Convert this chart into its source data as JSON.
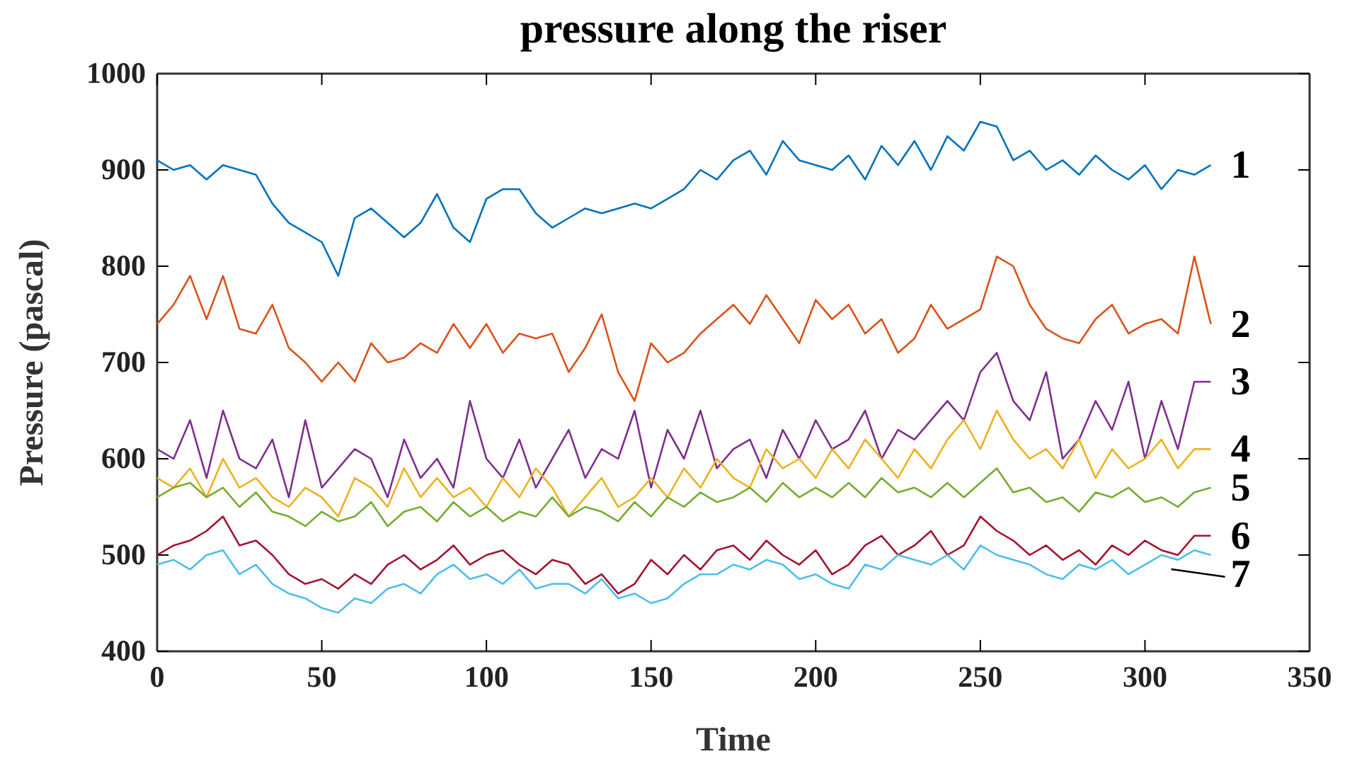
{
  "chart_data": {
    "type": "line",
    "title": "pressure along the riser",
    "xlabel": "Time",
    "ylabel": "Pressure (pascal)",
    "x": [
      0,
      5,
      10,
      15,
      20,
      25,
      30,
      35,
      40,
      45,
      50,
      55,
      60,
      65,
      70,
      75,
      80,
      85,
      90,
      95,
      100,
      105,
      110,
      115,
      120,
      125,
      130,
      135,
      140,
      145,
      150,
      155,
      160,
      165,
      170,
      175,
      180,
      185,
      190,
      195,
      200,
      205,
      210,
      215,
      220,
      225,
      230,
      235,
      240,
      245,
      250,
      255,
      260,
      265,
      270,
      275,
      280,
      285,
      290,
      295,
      300,
      305,
      310,
      315,
      320
    ],
    "xlim": [
      0,
      350
    ],
    "xticks": [
      0,
      50,
      100,
      150,
      200,
      250,
      300,
      350
    ],
    "ylim": [
      400,
      1000
    ],
    "yticks": [
      400,
      500,
      600,
      700,
      800,
      900,
      1000
    ],
    "grid": false,
    "legend": false,
    "series": [
      {
        "name": "1",
        "color": "#0072bd",
        "values": [
          910,
          900,
          905,
          890,
          905,
          900,
          895,
          865,
          845,
          835,
          825,
          790,
          850,
          860,
          845,
          830,
          845,
          875,
          840,
          825,
          870,
          880,
          880,
          855,
          840,
          850,
          860,
          855,
          860,
          865,
          860,
          870,
          880,
          900,
          890,
          910,
          920,
          895,
          930,
          910,
          905,
          900,
          915,
          890,
          925,
          905,
          930,
          900,
          935,
          920,
          950,
          945,
          910,
          920,
          900,
          910,
          895,
          915,
          900,
          890,
          905,
          880,
          900,
          895,
          905
        ]
      },
      {
        "name": "2",
        "color": "#d95319",
        "values": [
          740,
          760,
          790,
          745,
          790,
          735,
          730,
          760,
          715,
          700,
          680,
          700,
          680,
          720,
          700,
          705,
          720,
          710,
          740,
          715,
          740,
          710,
          730,
          725,
          730,
          690,
          715,
          750,
          690,
          660,
          720,
          700,
          710,
          730,
          745,
          760,
          740,
          770,
          745,
          720,
          765,
          745,
          760,
          730,
          745,
          710,
          725,
          760,
          735,
          745,
          755,
          810,
          800,
          760,
          735,
          725,
          720,
          745,
          760,
          730,
          740,
          745,
          730,
          810,
          740
        ]
      },
      {
        "name": "3",
        "color": "#7e2f8e",
        "values": [
          610,
          600,
          640,
          580,
          650,
          600,
          590,
          620,
          560,
          640,
          570,
          590,
          610,
          600,
          560,
          620,
          580,
          600,
          570,
          660,
          600,
          580,
          620,
          570,
          600,
          630,
          580,
          610,
          600,
          650,
          570,
          630,
          600,
          650,
          590,
          610,
          620,
          580,
          630,
          600,
          640,
          610,
          620,
          650,
          600,
          630,
          620,
          640,
          660,
          640,
          690,
          710,
          660,
          640,
          690,
          600,
          620,
          660,
          630,
          680,
          600,
          660,
          610,
          680,
          680
        ]
      },
      {
        "name": "4",
        "color": "#edb120",
        "values": [
          580,
          570,
          590,
          560,
          600,
          570,
          580,
          560,
          550,
          570,
          560,
          540,
          580,
          570,
          550,
          590,
          560,
          580,
          560,
          570,
          550,
          580,
          560,
          590,
          570,
          540,
          560,
          580,
          550,
          560,
          580,
          560,
          590,
          570,
          600,
          580,
          570,
          610,
          590,
          600,
          580,
          610,
          590,
          620,
          600,
          580,
          610,
          590,
          620,
          640,
          610,
          650,
          620,
          600,
          610,
          590,
          620,
          580,
          610,
          590,
          600,
          620,
          590,
          610,
          610
        ]
      },
      {
        "name": "5",
        "color": "#77ac30",
        "values": [
          560,
          570,
          575,
          560,
          570,
          550,
          565,
          545,
          540,
          530,
          545,
          535,
          540,
          555,
          530,
          545,
          550,
          535,
          555,
          540,
          550,
          535,
          545,
          540,
          560,
          540,
          550,
          545,
          535,
          555,
          540,
          560,
          550,
          565,
          555,
          560,
          570,
          555,
          575,
          560,
          570,
          560,
          575,
          560,
          580,
          565,
          570,
          560,
          575,
          560,
          575,
          590,
          565,
          570,
          555,
          560,
          545,
          565,
          560,
          570,
          555,
          560,
          550,
          565,
          570
        ]
      },
      {
        "name": "6",
        "color": "#a2142f",
        "values": [
          500,
          510,
          515,
          525,
          540,
          510,
          515,
          500,
          480,
          470,
          475,
          465,
          480,
          470,
          490,
          500,
          485,
          495,
          510,
          490,
          500,
          505,
          490,
          480,
          495,
          490,
          470,
          480,
          460,
          470,
          495,
          480,
          500,
          485,
          505,
          510,
          495,
          515,
          500,
          490,
          505,
          480,
          490,
          510,
          520,
          500,
          510,
          525,
          500,
          510,
          540,
          525,
          515,
          500,
          510,
          495,
          505,
          490,
          510,
          500,
          515,
          505,
          500,
          520,
          520
        ]
      },
      {
        "name": "7",
        "color": "#4dbeee",
        "values": [
          490,
          495,
          485,
          500,
          505,
          480,
          490,
          470,
          460,
          455,
          445,
          440,
          455,
          450,
          465,
          470,
          460,
          480,
          490,
          475,
          480,
          470,
          485,
          465,
          470,
          470,
          460,
          475,
          455,
          460,
          450,
          455,
          470,
          480,
          480,
          490,
          485,
          495,
          490,
          475,
          480,
          470,
          465,
          490,
          485,
          500,
          495,
          490,
          500,
          485,
          510,
          500,
          495,
          490,
          480,
          475,
          490,
          485,
          495,
          480,
          490,
          500,
          495,
          505,
          500
        ]
      }
    ]
  }
}
